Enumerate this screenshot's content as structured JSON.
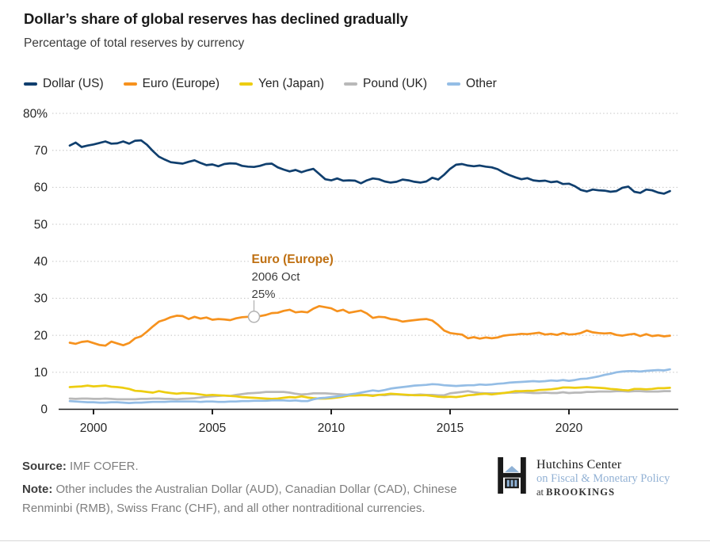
{
  "header": {
    "title": "Dollar’s share of global reserves has declined gradually",
    "subtitle": "Percentage of total reserves by currency"
  },
  "legend": [
    {
      "label": "Dollar (US)",
      "color": "#103F6E"
    },
    {
      "label": "Euro (Europe)",
      "color": "#F6921E"
    },
    {
      "label": "Yen (Japan)",
      "color": "#EDCD11"
    },
    {
      "label": "Pound (UK)",
      "color": "#B9B9B9"
    },
    {
      "label": "Other",
      "color": "#94BDE5"
    }
  ],
  "chart_data": {
    "type": "line",
    "title": "Dollar’s share of global reserves has declined gradually",
    "subtitle": "Percentage of total reserves by currency",
    "x_unit": "year, quarterly points",
    "x_start_year": 1999,
    "x_step_years": 0.25,
    "xlim": [
      1999,
      2024.5
    ],
    "ylim": [
      0,
      80
    ],
    "grid": "horizontal dotted lines at 10..80",
    "legend_position": "top",
    "x_ticks": [
      2000,
      2005,
      2010,
      2015,
      2020
    ],
    "y_ticks": [
      0,
      10,
      20,
      30,
      40,
      50,
      60,
      70,
      80
    ],
    "y_tick_labels": [
      "0",
      "10",
      "20",
      "30",
      "40",
      "50",
      "60",
      "70",
      "80%"
    ],
    "series": [
      {
        "name": "Dollar (US)",
        "color": "#103F6E",
        "values": [
          71.3,
          72.1,
          70.9,
          71.3,
          71.6,
          72.0,
          72.4,
          71.8,
          71.9,
          72.4,
          71.8,
          72.6,
          72.7,
          71.5,
          69.8,
          68.3,
          67.5,
          66.8,
          66.6,
          66.4,
          66.9,
          67.3,
          66.6,
          66.0,
          66.2,
          65.7,
          66.3,
          66.5,
          66.4,
          65.8,
          65.6,
          65.5,
          65.8,
          66.3,
          66.4,
          65.4,
          64.8,
          64.3,
          64.7,
          64.1,
          64.6,
          65.0,
          63.6,
          62.2,
          61.9,
          62.4,
          61.8,
          61.9,
          61.8,
          61.1,
          61.9,
          62.4,
          62.2,
          61.6,
          61.3,
          61.5,
          62.1,
          61.9,
          61.5,
          61.3,
          61.6,
          62.6,
          62.1,
          63.4,
          65.0,
          66.1,
          66.3,
          65.9,
          65.7,
          65.9,
          65.6,
          65.4,
          64.9,
          64.0,
          63.3,
          62.7,
          62.2,
          62.5,
          61.9,
          61.7,
          61.8,
          61.4,
          61.6,
          60.9,
          61.0,
          60.3,
          59.3,
          58.9,
          59.4,
          59.2,
          59.1,
          58.8,
          59.0,
          59.9,
          60.2,
          58.8,
          58.5,
          59.4,
          59.2,
          58.6,
          58.3,
          59.0
        ]
      },
      {
        "name": "Euro (Europe)",
        "color": "#F6921E",
        "values": [
          18.0,
          17.7,
          18.2,
          18.4,
          17.9,
          17.4,
          17.2,
          18.3,
          17.8,
          17.3,
          17.9,
          19.2,
          19.7,
          21.0,
          22.4,
          23.7,
          24.2,
          24.9,
          25.3,
          25.2,
          24.4,
          25.0,
          24.5,
          24.8,
          24.2,
          24.4,
          24.3,
          24.1,
          24.6,
          24.9,
          25.0,
          25.1,
          25.2,
          25.5,
          26.0,
          26.1,
          26.6,
          26.9,
          26.2,
          26.4,
          26.2,
          27.2,
          27.9,
          27.6,
          27.3,
          26.5,
          26.9,
          26.1,
          26.4,
          26.7,
          25.9,
          24.7,
          25.0,
          24.9,
          24.4,
          24.2,
          23.7,
          23.9,
          24.1,
          24.3,
          24.4,
          24.0,
          22.8,
          21.3,
          20.6,
          20.4,
          20.2,
          19.2,
          19.5,
          19.1,
          19.4,
          19.2,
          19.4,
          19.9,
          20.1,
          20.2,
          20.4,
          20.3,
          20.5,
          20.7,
          20.2,
          20.4,
          20.1,
          20.6,
          20.2,
          20.3,
          20.6,
          21.3,
          20.8,
          20.6,
          20.5,
          20.6,
          20.1,
          19.9,
          20.2,
          20.4,
          19.8,
          20.3,
          19.8,
          20.0,
          19.7,
          19.9
        ]
      },
      {
        "name": "Yen (Japan)",
        "color": "#EDCD11",
        "values": [
          6.0,
          6.1,
          6.2,
          6.4,
          6.2,
          6.3,
          6.4,
          6.1,
          6.0,
          5.8,
          5.5,
          5.0,
          4.9,
          4.7,
          4.5,
          4.9,
          4.6,
          4.4,
          4.2,
          4.4,
          4.3,
          4.2,
          4.0,
          3.8,
          3.9,
          3.8,
          3.7,
          3.6,
          3.5,
          3.3,
          3.2,
          3.1,
          3.0,
          2.9,
          2.8,
          2.9,
          3.1,
          3.3,
          3.2,
          3.5,
          3.2,
          3.0,
          2.9,
          2.9,
          3.0,
          3.2,
          3.4,
          3.7,
          3.7,
          3.8,
          3.8,
          3.6,
          3.9,
          4.0,
          4.2,
          4.1,
          4.0,
          3.9,
          3.8,
          3.8,
          3.8,
          3.6,
          3.4,
          3.3,
          3.4,
          3.3,
          3.5,
          3.8,
          3.9,
          4.1,
          4.2,
          4.0,
          4.2,
          4.4,
          4.6,
          4.9,
          4.9,
          5.0,
          5.0,
          5.2,
          5.3,
          5.4,
          5.6,
          5.9,
          5.9,
          5.8,
          5.9,
          6.0,
          5.9,
          5.8,
          5.7,
          5.5,
          5.4,
          5.2,
          5.1,
          5.5,
          5.5,
          5.4,
          5.5,
          5.7,
          5.7,
          5.8
        ]
      },
      {
        "name": "Pound (UK)",
        "color": "#B9B9B9",
        "values": [
          2.9,
          2.8,
          2.9,
          2.9,
          2.8,
          2.8,
          2.9,
          2.8,
          2.7,
          2.7,
          2.7,
          2.7,
          2.8,
          2.8,
          2.9,
          2.9,
          2.8,
          2.8,
          2.7,
          2.8,
          2.9,
          3.0,
          3.2,
          3.4,
          3.5,
          3.6,
          3.7,
          3.6,
          3.9,
          4.1,
          4.3,
          4.4,
          4.5,
          4.7,
          4.7,
          4.7,
          4.7,
          4.5,
          4.2,
          4.0,
          4.1,
          4.3,
          4.3,
          4.3,
          4.2,
          4.1,
          4.0,
          3.9,
          4.0,
          3.9,
          3.9,
          3.8,
          3.9,
          3.8,
          4.0,
          4.0,
          3.9,
          3.8,
          3.9,
          4.0,
          3.9,
          3.9,
          3.8,
          3.8,
          4.3,
          4.5,
          4.7,
          4.9,
          4.6,
          4.4,
          4.3,
          4.3,
          4.3,
          4.4,
          4.5,
          4.5,
          4.6,
          4.5,
          4.4,
          4.4,
          4.5,
          4.4,
          4.4,
          4.6,
          4.4,
          4.5,
          4.5,
          4.7,
          4.7,
          4.8,
          4.8,
          4.8,
          4.9,
          4.9,
          4.8,
          4.9,
          4.9,
          4.8,
          4.8,
          4.8,
          4.9,
          4.9
        ]
      },
      {
        "name": "Other",
        "color": "#94BDE5",
        "values": [
          2.2,
          2.1,
          2.0,
          1.9,
          1.9,
          1.8,
          1.8,
          1.9,
          1.9,
          1.8,
          1.7,
          1.8,
          1.8,
          1.9,
          2.0,
          2.0,
          2.0,
          2.1,
          2.1,
          2.1,
          2.1,
          2.1,
          2.0,
          2.1,
          2.1,
          2.0,
          2.0,
          2.1,
          2.1,
          2.2,
          2.2,
          2.3,
          2.3,
          2.3,
          2.4,
          2.4,
          2.4,
          2.3,
          2.4,
          2.2,
          2.2,
          2.7,
          3.0,
          3.1,
          3.3,
          3.5,
          3.7,
          4.0,
          4.2,
          4.5,
          4.8,
          5.1,
          4.9,
          5.2,
          5.6,
          5.8,
          6.0,
          6.2,
          6.4,
          6.5,
          6.6,
          6.8,
          6.7,
          6.5,
          6.4,
          6.3,
          6.4,
          6.5,
          6.5,
          6.7,
          6.6,
          6.7,
          6.9,
          7.0,
          7.2,
          7.3,
          7.4,
          7.5,
          7.6,
          7.5,
          7.6,
          7.8,
          7.7,
          7.9,
          7.7,
          7.9,
          8.2,
          8.3,
          8.6,
          8.9,
          9.3,
          9.6,
          10.0,
          10.2,
          10.3,
          10.3,
          10.2,
          10.4,
          10.5,
          10.6,
          10.5,
          10.8
        ]
      }
    ],
    "annotation": {
      "title": "Euro (Europe)",
      "date_label": "2006 Oct",
      "value_label": "25%",
      "x_year": 2006.75,
      "y_value": 25,
      "title_color": "#BF7012"
    }
  },
  "footer": {
    "source_label": "Source:",
    "source_text": " IMF COFER.",
    "note_label": "Note:",
    "note_text": " Other includes the Australian Dollar (AUD), Canadian Dollar (CAD), Chinese Renminbi (RMB), Swiss Franc (CHF), and all other nontraditional currencies.",
    "logo": {
      "line1": "Hutchins Center",
      "line2": "on Fiscal & Monetary Policy",
      "line3_prefix": "at ",
      "line3": "BROOKINGS"
    }
  }
}
